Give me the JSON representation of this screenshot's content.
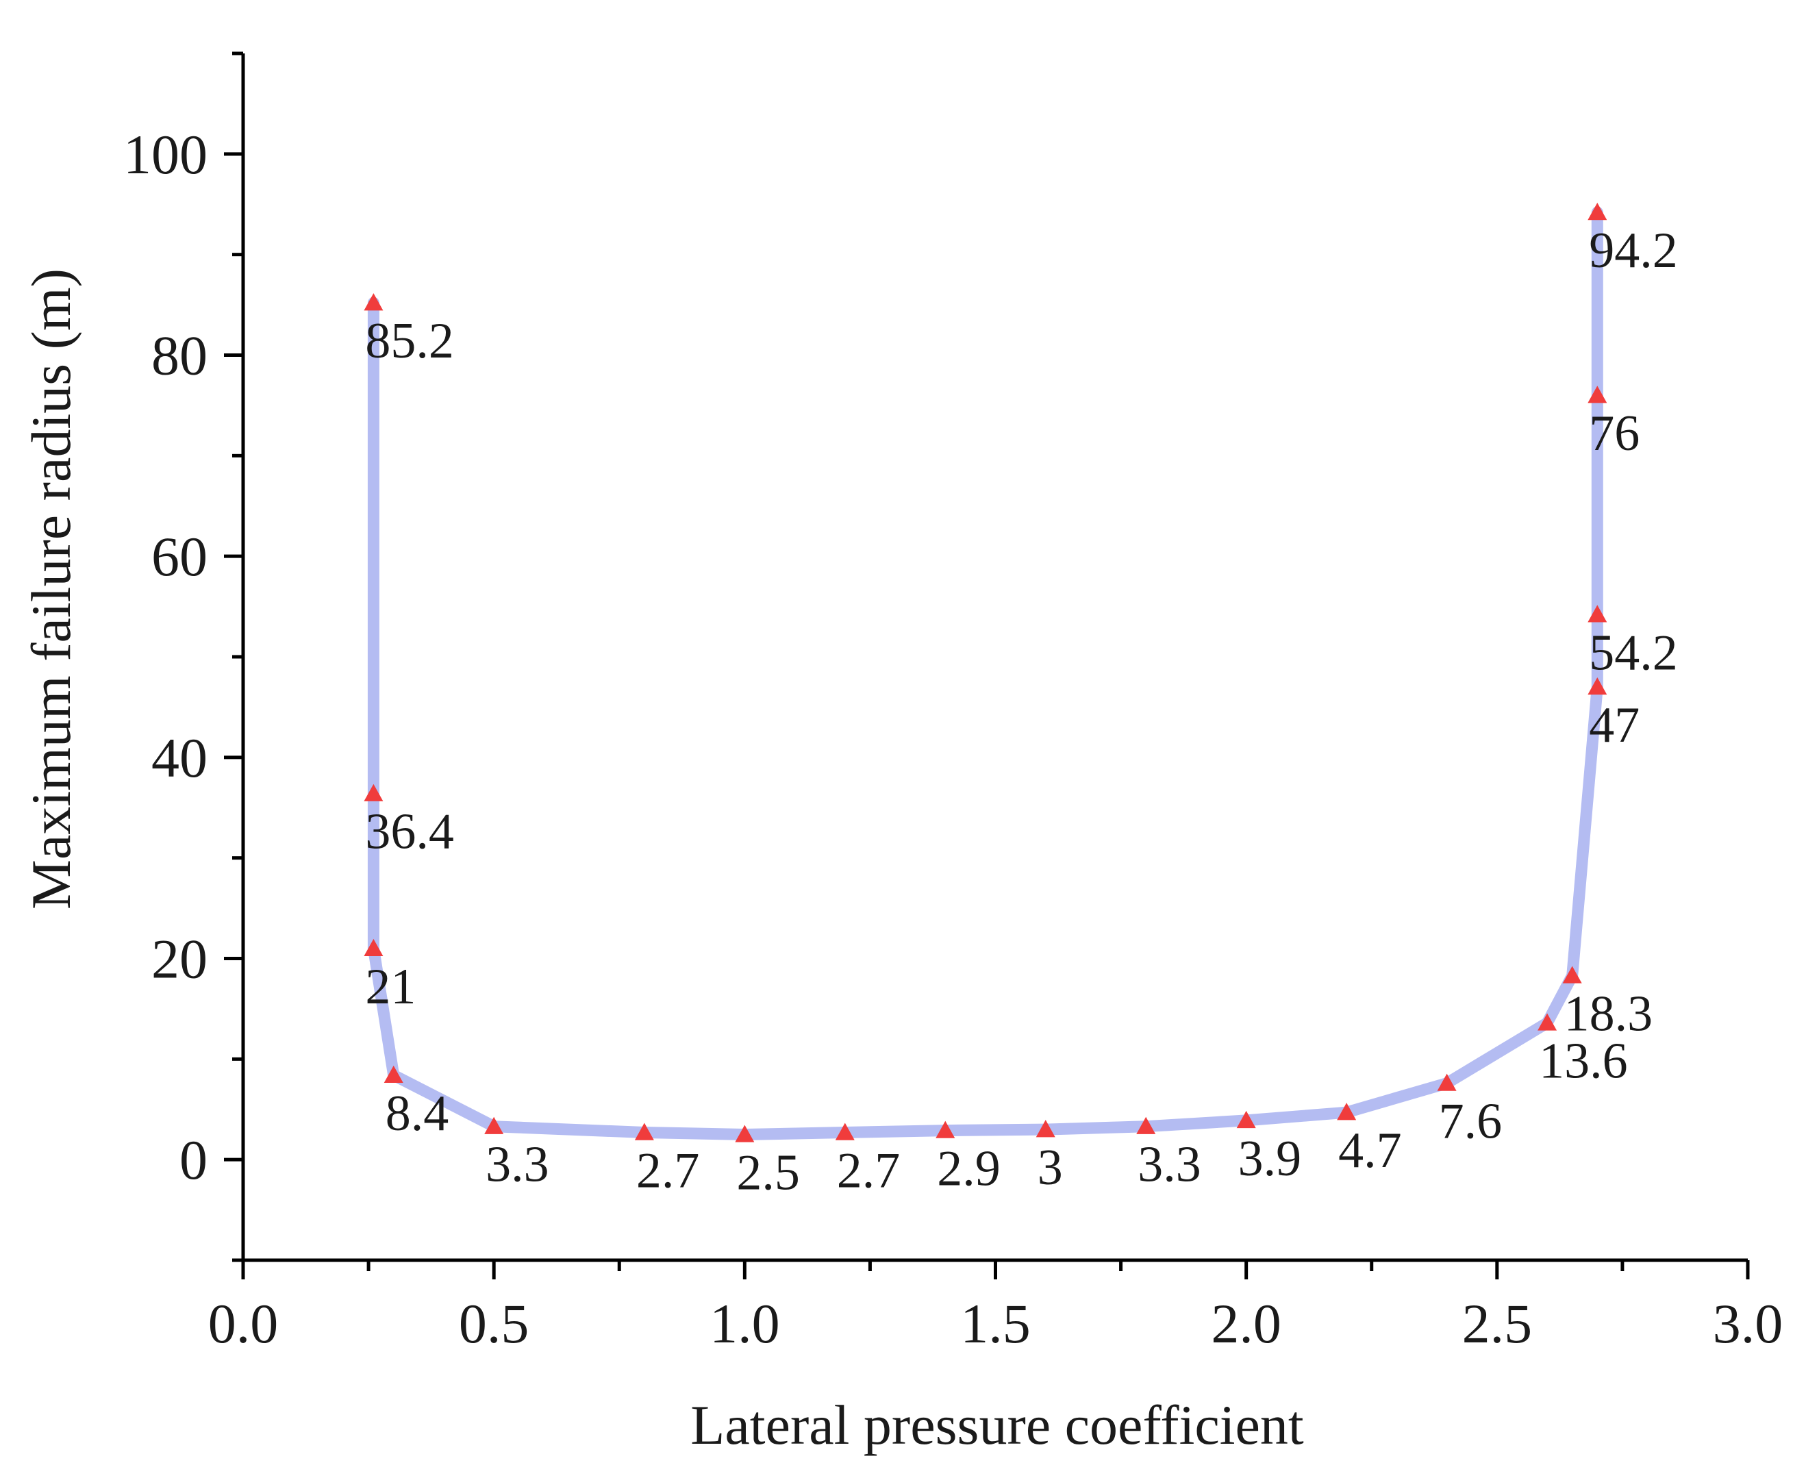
{
  "chart_data": {
    "type": "line",
    "title": "",
    "xlabel": "Lateral pressure coefficient",
    "ylabel": "Maximum failure radius (m)",
    "xlim": [
      0,
      3.0
    ],
    "ylim": [
      -10,
      110
    ],
    "x_ticks": [
      0,
      0.5,
      1.0,
      1.5,
      2.0,
      2.5,
      3.0
    ],
    "x_tick_labels": [
      "0.0",
      "0.5",
      "1.0",
      "1.5",
      "2.0",
      "2.5",
      "3.0"
    ],
    "y_ticks": [
      0,
      20,
      40,
      60,
      80,
      100
    ],
    "y_tick_labels": [
      "0",
      "20",
      "40",
      "60",
      "80",
      "100"
    ],
    "series": [
      {
        "name": "Maximum failure radius",
        "line_color": "#b4bcf2",
        "marker_color": "#f03c3c",
        "marker": "triangle",
        "points": [
          {
            "x": 0.26,
            "y": 85.2,
            "label": "85.2"
          },
          {
            "x": 0.26,
            "y": 36.4,
            "label": "36.4"
          },
          {
            "x": 0.26,
            "y": 21,
            "label": "21"
          },
          {
            "x": 0.3,
            "y": 8.4,
            "label": "8.4"
          },
          {
            "x": 0.5,
            "y": 3.3,
            "label": "3.3"
          },
          {
            "x": 0.8,
            "y": 2.7,
            "label": "2.7"
          },
          {
            "x": 1.0,
            "y": 2.5,
            "label": "2.5"
          },
          {
            "x": 1.2,
            "y": 2.7,
            "label": "2.7"
          },
          {
            "x": 1.4,
            "y": 2.9,
            "label": "2.9"
          },
          {
            "x": 1.6,
            "y": 3,
            "label": "3"
          },
          {
            "x": 1.8,
            "y": 3.3,
            "label": "3.3"
          },
          {
            "x": 2.0,
            "y": 3.9,
            "label": "3.9"
          },
          {
            "x": 2.2,
            "y": 4.7,
            "label": "4.7"
          },
          {
            "x": 2.4,
            "y": 7.6,
            "label": "7.6"
          },
          {
            "x": 2.6,
            "y": 13.6,
            "label": "13.6"
          },
          {
            "x": 2.65,
            "y": 18.3,
            "label": "18.3"
          },
          {
            "x": 2.7,
            "y": 47,
            "label": "47"
          },
          {
            "x": 2.7,
            "y": 54.2,
            "label": "54.2"
          },
          {
            "x": 2.7,
            "y": 76,
            "label": "76"
          },
          {
            "x": 2.7,
            "y": 94.2,
            "label": "94.2"
          }
        ]
      }
    ]
  }
}
